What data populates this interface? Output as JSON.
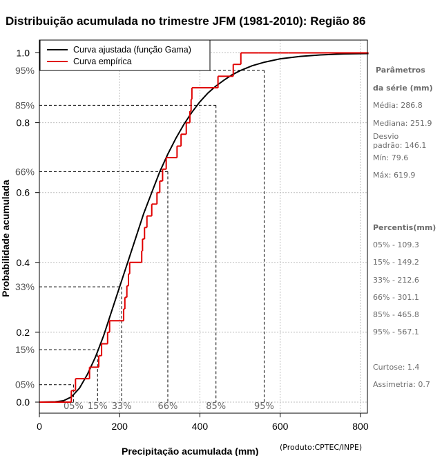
{
  "chart_data": {
    "type": "line",
    "title": "Distribuição acumulada no trimestre JFM (1981-2010): Região 86",
    "xlabel": "Precipitação acumulada (mm)",
    "ylabel": "Probabilidade acumulada",
    "credit": "(Produto:CPTEC/INPE)",
    "xlim": [
      0,
      820
    ],
    "ylim": [
      -0.03,
      1.02
    ],
    "x_ticks": [
      0,
      200,
      400,
      600,
      800
    ],
    "x_tick_labels": [
      "0",
      "200",
      "400",
      "600",
      "800"
    ],
    "y_ticks": [
      0.0,
      0.2,
      0.4,
      0.6,
      0.8,
      1.0
    ],
    "y_tick_labels": [
      "0.0",
      "0.2",
      "0.4",
      "0.6",
      "0.8",
      "1.0"
    ],
    "grid": true,
    "legend": {
      "position": "top-left",
      "entries": [
        {
          "label": "Curva ajustada (função Gama)",
          "color": "#000000"
        },
        {
          "label": "Curva empírica",
          "color": "#e00000"
        }
      ]
    },
    "series": [
      {
        "name": "Curva ajustada (função Gama)",
        "color": "#000000",
        "x": [
          0,
          40,
          60,
          80,
          100,
          120,
          140,
          160,
          180,
          200,
          220,
          240,
          260,
          280,
          300,
          320,
          340,
          360,
          380,
          400,
          420,
          440,
          460,
          480,
          500,
          530,
          560,
          600,
          650,
          700,
          760,
          820
        ],
        "y": [
          0.0,
          0.001,
          0.004,
          0.015,
          0.04,
          0.08,
          0.13,
          0.19,
          0.26,
          0.33,
          0.4,
          0.47,
          0.54,
          0.6,
          0.66,
          0.71,
          0.755,
          0.795,
          0.83,
          0.86,
          0.885,
          0.905,
          0.922,
          0.937,
          0.949,
          0.963,
          0.973,
          0.983,
          0.99,
          0.994,
          0.997,
          0.998
        ]
      },
      {
        "name": "Curva empírica",
        "color": "#e00000",
        "step_x": [
          79.6,
          90,
          125,
          148,
          155,
          170,
          175,
          210,
          213,
          218,
          222,
          225,
          255,
          257,
          262,
          268,
          280,
          293,
          300,
          307,
          316,
          343,
          353,
          366,
          375,
          378,
          380,
          445,
          483,
          502,
          547,
          593,
          602,
          619.9
        ],
        "step_y": [
          0.033,
          0.067,
          0.1,
          0.133,
          0.167,
          0.2,
          0.233,
          0.267,
          0.3,
          0.333,
          0.367,
          0.4,
          0.433,
          0.467,
          0.5,
          0.533,
          0.567,
          0.6,
          0.633,
          0.667,
          0.7,
          0.733,
          0.767,
          0.8,
          0.833,
          0.867,
          0.9,
          0.933,
          0.967,
          1.0,
          1.0,
          1.0,
          1.0,
          1.0
        ]
      }
    ],
    "percentile_markers": [
      {
        "label": "05%",
        "prob": 0.05,
        "value": 85
      },
      {
        "label": "15%",
        "prob": 0.15,
        "value": 145
      },
      {
        "label": "33%",
        "prob": 0.33,
        "value": 205
      },
      {
        "label": "66%",
        "prob": 0.66,
        "value": 320
      },
      {
        "label": "85%",
        "prob": 0.85,
        "value": 440
      },
      {
        "label": "95%",
        "prob": 0.95,
        "value": 560
      }
    ]
  },
  "sidebar": {
    "params_title_line1": "Parâmetros",
    "params_title_line2": "da série (mm)",
    "media": "Média: 286.8",
    "mediana": "Mediana: 251.9",
    "desvio_line1": "Desvio",
    "desvio_line2": "padrão: 146.1",
    "min": "Mín: 79.6",
    "max": "Máx: 619.9",
    "percentis_title": "Percentis(mm)",
    "p05": "05% - 109.3",
    "p15": "15% - 149.2",
    "p33": "33% - 212.6",
    "p66": "66% - 301.1",
    "p85": "85% - 465.8",
    "p95": "95% - 567.1",
    "curtose": "Curtose: 1.4",
    "assimetria": "Assimetria: 0.7"
  }
}
